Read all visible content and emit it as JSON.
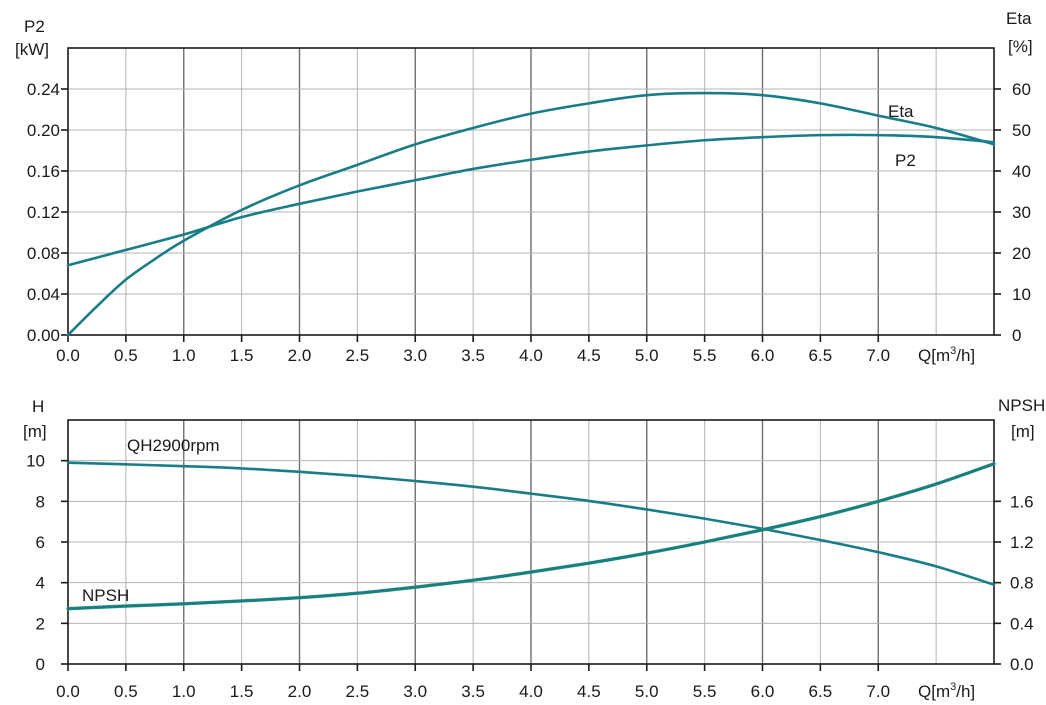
{
  "colors": {
    "curve": "#187d87",
    "curve_alt": "#3aa06a",
    "grid_major": "#6e6e6e",
    "grid_minor": "#b4b4b4",
    "axis": "#1a1a1a"
  },
  "chart_data": [
    {
      "type": "line",
      "panel": "top",
      "x_label": "Q[m³/h]",
      "x_ticks": [
        "0.0",
        "0.5",
        "1.0",
        "1.5",
        "2.0",
        "2.5",
        "3.0",
        "3.5",
        "4.0",
        "4.5",
        "5.0",
        "5.5",
        "6.0",
        "6.5",
        "7.0"
      ],
      "xlim": [
        0,
        8
      ],
      "left_axis": {
        "label_lines": [
          "P2",
          "[kW]"
        ],
        "ticks": [
          "0.00",
          "0.04",
          "0.08",
          "0.12",
          "0.16",
          "0.20",
          "0.24"
        ],
        "ylim": [
          0,
          0.28
        ]
      },
      "right_axis": {
        "label_lines": [
          "Eta",
          "[%]"
        ],
        "ticks": [
          "0",
          "10",
          "20",
          "30",
          "40",
          "50",
          "60"
        ],
        "ylim": [
          0,
          70
        ]
      },
      "grid": true,
      "series": [
        {
          "name": "P2",
          "axis": "left",
          "x": [
            0,
            0.5,
            1.0,
            1.5,
            2.0,
            2.5,
            3.0,
            3.5,
            4.0,
            4.5,
            5.0,
            5.5,
            6.0,
            6.5,
            7.0,
            7.5,
            8.0
          ],
          "y": [
            0.068,
            0.083,
            0.098,
            0.115,
            0.128,
            0.14,
            0.151,
            0.162,
            0.171,
            0.179,
            0.185,
            0.19,
            0.193,
            0.195,
            0.195,
            0.193,
            0.188
          ],
          "label_position": "end"
        },
        {
          "name": "Eta",
          "axis": "right",
          "x": [
            0,
            0.25,
            0.5,
            0.75,
            1.0,
            1.5,
            2.0,
            2.5,
            3.0,
            3.5,
            4.0,
            4.5,
            5.0,
            5.5,
            6.0,
            6.5,
            7.0,
            7.5,
            8.0
          ],
          "y": [
            0,
            7,
            13.5,
            18.5,
            23,
            30.5,
            36.5,
            41.5,
            46.5,
            50.5,
            54,
            56.5,
            58.5,
            59,
            58.5,
            56.5,
            53.5,
            50.5,
            46.5
          ],
          "label_position": "end"
        }
      ]
    },
    {
      "type": "line",
      "panel": "bottom",
      "x_label": "Q[m³/h]",
      "x_ticks": [
        "0.0",
        "0.5",
        "1.0",
        "1.5",
        "2.0",
        "2.5",
        "3.0",
        "3.5",
        "4.0",
        "4.5",
        "5.0",
        "5.5",
        "6.0",
        "6.5",
        "7.0"
      ],
      "xlim": [
        0,
        8
      ],
      "left_axis": {
        "label_lines": [
          "H",
          "[m]"
        ],
        "ticks": [
          "0",
          "2",
          "4",
          "6",
          "8",
          "10"
        ],
        "ylim": [
          0,
          12
        ]
      },
      "right_axis": {
        "label_lines": [
          "NPSH",
          "[m]"
        ],
        "ticks": [
          "0.0",
          "0.4",
          "0.8",
          "1.2",
          "1.6"
        ],
        "ylim": [
          0,
          2.4
        ]
      },
      "grid": true,
      "series": [
        {
          "name": "QH2900rpm",
          "axis": "left",
          "x": [
            0,
            0.5,
            1.0,
            1.5,
            2.0,
            2.5,
            3.0,
            3.5,
            4.0,
            4.5,
            5.0,
            5.5,
            6.0,
            6.5,
            7.0,
            7.5,
            8.0
          ],
          "y": [
            9.9,
            9.82,
            9.73,
            9.62,
            9.45,
            9.25,
            9.0,
            8.72,
            8.38,
            8.02,
            7.6,
            7.15,
            6.65,
            6.1,
            5.5,
            4.8,
            3.9
          ],
          "label_position": "start"
        },
        {
          "name": "NPSH",
          "axis": "left",
          "x": [
            0,
            0.5,
            1.0,
            1.5,
            2.0,
            2.5,
            3.0,
            3.5,
            4.0,
            4.5,
            5.0,
            5.5,
            6.0,
            6.5,
            7.0,
            7.5,
            8.0
          ],
          "y": [
            2.72,
            2.85,
            2.96,
            3.1,
            3.26,
            3.48,
            3.78,
            4.12,
            4.52,
            4.96,
            5.45,
            6.0,
            6.6,
            7.25,
            8.0,
            8.85,
            9.85
          ],
          "label_position": "start"
        }
      ]
    }
  ]
}
